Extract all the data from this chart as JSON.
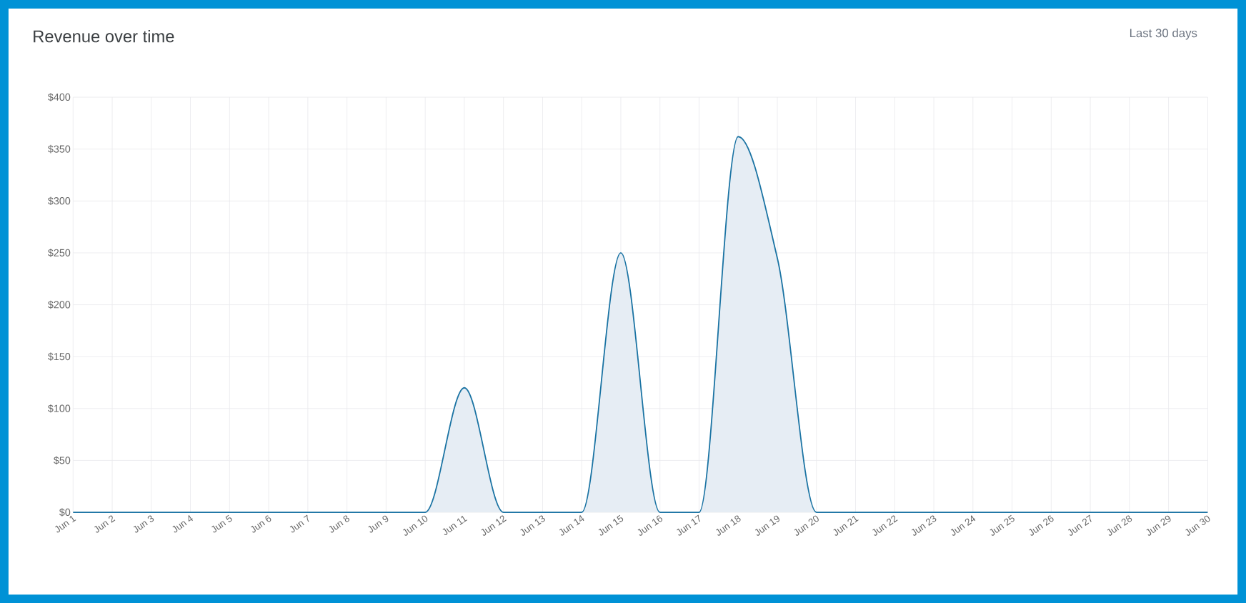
{
  "chart_data": {
    "type": "area",
    "title": "Revenue over time",
    "annotations": [
      "Last 30 days"
    ],
    "categories": [
      "Jun 1",
      "Jun 2",
      "Jun 3",
      "Jun 4",
      "Jun 5",
      "Jun 6",
      "Jun 7",
      "Jun 8",
      "Jun 9",
      "Jun 10",
      "Jun 11",
      "Jun 12",
      "Jun 13",
      "Jun 14",
      "Jun 15",
      "Jun 16",
      "Jun 17",
      "Jun 18",
      "Jun 19",
      "Jun 20",
      "Jun 21",
      "Jun 22",
      "Jun 23",
      "Jun 24",
      "Jun 25",
      "Jun 26",
      "Jun 27",
      "Jun 28",
      "Jun 29",
      "Jun 30"
    ],
    "values": [
      0,
      0,
      0,
      0,
      0,
      0,
      0,
      0,
      0,
      0,
      120,
      0,
      0,
      0,
      250,
      0,
      0,
      362,
      245,
      0,
      0,
      0,
      0,
      0,
      0,
      0,
      0,
      0,
      0,
      0
    ],
    "color": "#1a73a3",
    "ylim": [
      0,
      400
    ],
    "yticks": [
      {
        "value": 0,
        "label": "$0"
      },
      {
        "value": 50,
        "label": "$50"
      },
      {
        "value": 100,
        "label": "$100"
      },
      {
        "value": 150,
        "label": "$150"
      },
      {
        "value": 200,
        "label": "$200"
      },
      {
        "value": 250,
        "label": "$250"
      },
      {
        "value": 300,
        "label": "$300"
      },
      {
        "value": 350,
        "label": "$350"
      },
      {
        "value": 400,
        "label": "$400"
      }
    ],
    "grid": true
  }
}
